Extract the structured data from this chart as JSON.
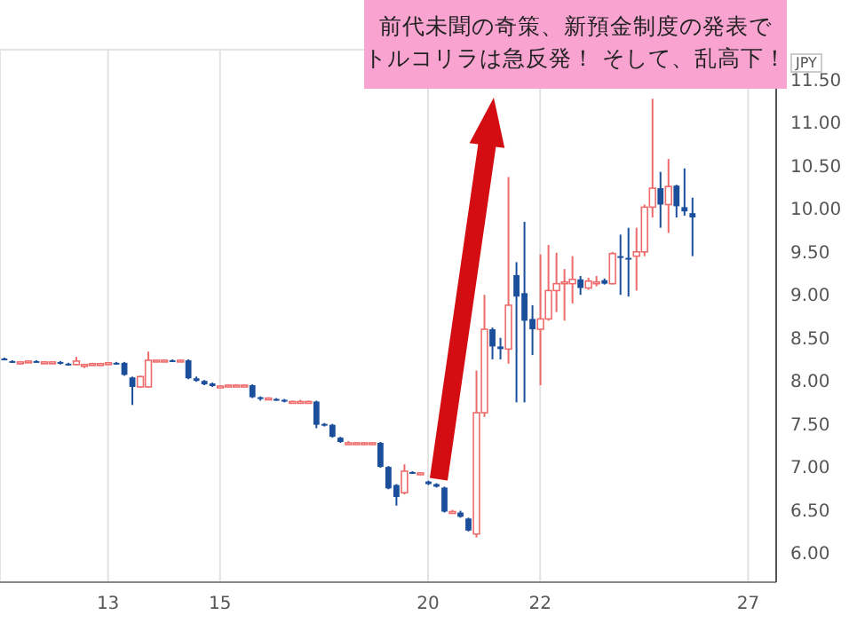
{
  "chart_data": {
    "type": "candlestick",
    "annotations": [
      "前代未聞の奇策、新預金制度の発表で",
      "トルコリラは急反発！ そして、乱高下！",
      "JPY"
    ],
    "categories": [
      null,
      null,
      null,
      null,
      null,
      null,
      null,
      null,
      null,
      null,
      null,
      null,
      null,
      "13",
      null,
      null,
      null,
      null,
      null,
      null,
      null,
      null,
      null,
      null,
      null,
      null,
      null,
      "15",
      null,
      null,
      null,
      null,
      null,
      null,
      null,
      null,
      null,
      null,
      null,
      null,
      null,
      null,
      null,
      null,
      null,
      null,
      null,
      null,
      null,
      null,
      null,
      null,
      null,
      "20",
      null,
      null,
      null,
      null,
      null,
      null,
      null,
      null,
      null,
      null,
      null,
      null,
      null,
      "22",
      null,
      null,
      null,
      null,
      null,
      null,
      null,
      null,
      null,
      null,
      null,
      null,
      null,
      null,
      null,
      null,
      null,
      null,
      null,
      null,
      null,
      null,
      null,
      null,
      null,
      "27",
      null,
      null,
      null
    ],
    "ohlc": [
      [
        8.26,
        8.27,
        8.24,
        8.25
      ],
      [
        8.23,
        8.24,
        8.21,
        8.22
      ],
      [
        8.21,
        8.23,
        8.19,
        8.22
      ],
      [
        8.23,
        8.24,
        8.22,
        8.23
      ],
      [
        8.23,
        8.24,
        8.22,
        8.22
      ],
      [
        8.22,
        8.23,
        8.21,
        8.22
      ],
      [
        8.21,
        8.23,
        8.2,
        8.22
      ],
      [
        8.22,
        8.23,
        8.19,
        8.2
      ],
      [
        8.2,
        8.21,
        8.18,
        8.19
      ],
      [
        8.19,
        8.28,
        8.18,
        8.23
      ],
      [
        8.18,
        8.2,
        8.15,
        8.19
      ],
      [
        8.2,
        8.21,
        8.19,
        8.2
      ],
      [
        8.2,
        8.21,
        8.19,
        8.2
      ],
      [
        8.2,
        8.22,
        8.19,
        8.21
      ],
      [
        8.21,
        8.22,
        8.19,
        8.2
      ],
      [
        8.21,
        8.22,
        8.06,
        8.07
      ],
      [
        8.04,
        8.05,
        7.72,
        7.93
      ],
      [
        7.93,
        8.06,
        7.92,
        8.05
      ],
      [
        7.93,
        8.34,
        7.92,
        8.24
      ],
      [
        8.24,
        8.25,
        8.23,
        8.24
      ],
      [
        8.24,
        8.25,
        8.23,
        8.24
      ],
      [
        8.24,
        8.25,
        8.22,
        8.23
      ],
      [
        8.23,
        8.25,
        8.22,
        8.24
      ],
      [
        8.24,
        8.25,
        8.02,
        8.03
      ],
      [
        8.03,
        8.05,
        7.99,
        8.0
      ],
      [
        8.0,
        8.01,
        7.95,
        7.96
      ],
      [
        7.97,
        7.98,
        7.93,
        7.94
      ],
      [
        7.94,
        7.95,
        7.93,
        7.94
      ],
      [
        7.93,
        7.96,
        7.92,
        7.95
      ],
      [
        7.94,
        7.96,
        7.93,
        7.95
      ],
      [
        7.94,
        7.96,
        7.93,
        7.95
      ],
      [
        7.95,
        7.96,
        7.8,
        7.81
      ],
      [
        7.81,
        7.82,
        7.77,
        7.79
      ],
      [
        7.79,
        7.81,
        7.78,
        7.8
      ],
      [
        7.79,
        7.8,
        7.77,
        7.78
      ],
      [
        7.78,
        7.79,
        7.75,
        7.76
      ],
      [
        7.76,
        7.77,
        7.75,
        7.76
      ],
      [
        7.76,
        7.78,
        7.75,
        7.76
      ],
      [
        7.76,
        7.77,
        7.75,
        7.76
      ],
      [
        7.76,
        7.77,
        7.45,
        7.49
      ],
      [
        7.5,
        7.51,
        7.47,
        7.48
      ],
      [
        7.49,
        7.5,
        7.34,
        7.35
      ],
      [
        7.34,
        7.35,
        7.28,
        7.29
      ],
      [
        7.28,
        7.3,
        7.27,
        7.28
      ],
      [
        7.28,
        7.29,
        7.27,
        7.28
      ],
      [
        7.27,
        7.29,
        7.26,
        7.28
      ],
      [
        7.27,
        7.29,
        7.26,
        7.28
      ],
      [
        7.28,
        7.29,
        6.99,
        7.0
      ],
      [
        7.0,
        7.01,
        6.74,
        6.75
      ],
      [
        6.79,
        6.8,
        6.55,
        6.65
      ],
      [
        6.7,
        7.03,
        6.68,
        6.95
      ],
      [
        6.94,
        6.95,
        6.92,
        6.93
      ],
      [
        6.92,
        6.94,
        6.91,
        6.93
      ],
      [
        6.83,
        6.84,
        6.79,
        6.8
      ],
      [
        6.8,
        6.81,
        6.76,
        6.77
      ],
      [
        6.76,
        6.77,
        6.47,
        6.48
      ],
      [
        6.47,
        6.5,
        6.46,
        6.48
      ],
      [
        6.47,
        6.49,
        6.41,
        6.42
      ],
      [
        6.4,
        6.41,
        6.25,
        6.26
      ],
      [
        6.22,
        8.12,
        6.18,
        7.63
      ],
      [
        7.63,
        9.0,
        7.58,
        8.6
      ],
      [
        8.6,
        8.62,
        8.25,
        8.4
      ],
      [
        8.4,
        8.5,
        8.25,
        8.37
      ],
      [
        8.37,
        10.37,
        8.2,
        8.88
      ],
      [
        9.23,
        9.38,
        7.75,
        8.98
      ],
      [
        9.02,
        9.85,
        7.75,
        8.7
      ],
      [
        8.72,
        8.88,
        8.3,
        8.6
      ],
      [
        8.6,
        9.47,
        7.95,
        8.72
      ],
      [
        8.72,
        9.58,
        8.7,
        9.05
      ],
      [
        9.05,
        9.49,
        8.8,
        9.13
      ],
      [
        9.13,
        9.3,
        8.7,
        9.15
      ],
      [
        9.13,
        9.45,
        8.9,
        9.18
      ],
      [
        9.18,
        9.22,
        9.0,
        9.08
      ],
      [
        9.08,
        9.2,
        9.06,
        9.16
      ],
      [
        9.14,
        9.22,
        9.1,
        9.15
      ],
      [
        9.17,
        9.19,
        9.12,
        9.13
      ],
      [
        9.13,
        9.5,
        9.12,
        9.48
      ],
      [
        9.45,
        9.7,
        9.0,
        9.43
      ],
      [
        9.43,
        9.78,
        8.98,
        9.42
      ],
      [
        9.45,
        9.78,
        9.05,
        9.5
      ],
      [
        9.5,
        10.05,
        9.45,
        10.02
      ],
      [
        10.02,
        11.28,
        9.9,
        10.24
      ],
      [
        10.24,
        10.43,
        9.78,
        10.05
      ],
      [
        10.05,
        10.58,
        9.72,
        10.26
      ],
      [
        10.27,
        10.28,
        9.9,
        10.03
      ],
      [
        10.02,
        10.47,
        9.92,
        9.97
      ],
      [
        9.95,
        10.13,
        9.45,
        9.9
      ],
      null,
      null,
      null,
      null,
      null,
      null,
      null,
      null,
      null,
      null
    ],
    "colors": [
      "#1b4f9c",
      "#1b4f9c",
      "#ef6b6b",
      "#ef6b6b",
      "#1b4f9c",
      "#ef6b6b",
      "#ef6b6b",
      "#1b4f9c",
      "#1b4f9c",
      "#ef6b6b",
      "#ef6b6b",
      "#ef6b6b",
      "#ef6b6b",
      "#ef6b6b",
      "#1b4f9c",
      "#1b4f9c",
      "#1b4f9c",
      "#ef6b6b",
      "#ef6b6b",
      "#ef6b6b",
      "#ef6b6b",
      "#1b4f9c",
      "#ef6b6b",
      "#1b4f9c",
      "#1b4f9c",
      "#1b4f9c",
      "#1b4f9c",
      "#ef6b6b",
      "#ef6b6b",
      "#ef6b6b",
      "#ef6b6b",
      "#1b4f9c",
      "#1b4f9c",
      "#ef6b6b",
      "#1b4f9c",
      "#1b4f9c",
      "#ef6b6b",
      "#ef6b6b",
      "#ef6b6b",
      "#1b4f9c",
      "#1b4f9c",
      "#1b4f9c",
      "#1b4f9c",
      "#ef6b6b",
      "#ef6b6b",
      "#ef6b6b",
      "#ef6b6b",
      "#1b4f9c",
      "#1b4f9c",
      "#1b4f9c",
      "#ef6b6b",
      "#1b4f9c",
      "#ef6b6b",
      "#1b4f9c",
      "#1b4f9c",
      "#1b4f9c",
      "#ef6b6b",
      "#1b4f9c",
      "#1b4f9c",
      "#ef6b6b",
      "#ef6b6b",
      "#1b4f9c",
      "#1b4f9c",
      "#ef6b6b",
      "#1b4f9c",
      "#1b4f9c",
      "#1b4f9c",
      "#ef6b6b",
      "#ef6b6b",
      "#ef6b6b",
      "#ef6b6b",
      "#ef6b6b",
      "#1b4f9c",
      "#ef6b6b",
      "#ef6b6b",
      "#1b4f9c",
      "#ef6b6b",
      "#1b4f9c",
      "#1b4f9c",
      "#ef6b6b",
      "#ef6b6b",
      "#ef6b6b",
      "#1b4f9c",
      "#ef6b6b",
      "#1b4f9c",
      "#1b4f9c",
      "#1b4f9c",
      null,
      null,
      null,
      null,
      null,
      null,
      null,
      null,
      null,
      null
    ],
    "ylim": [
      5.66,
      11.85
    ],
    "yticks": [
      {
        "value": 6,
        "label": "6.00"
      },
      {
        "value": 6.5,
        "label": "6.50"
      },
      {
        "value": 7,
        "label": "7.00"
      },
      {
        "value": 7.5,
        "label": "7.50"
      },
      {
        "value": 8,
        "label": "8.00"
      },
      {
        "value": 8.5,
        "label": "8.50"
      },
      {
        "value": 9,
        "label": "9.00"
      },
      {
        "value": 9.5,
        "label": "9.50"
      },
      {
        "value": 10,
        "label": "10.00"
      },
      {
        "value": 10.5,
        "label": "10.50"
      },
      {
        "value": 11,
        "label": "11.00"
      },
      {
        "value": 11.5,
        "label": "11.50"
      }
    ],
    "grid": true
  }
}
